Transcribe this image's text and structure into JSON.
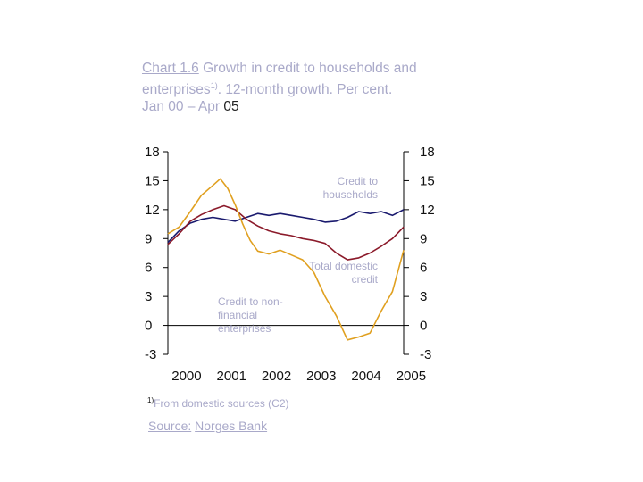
{
  "title": {
    "chart_no": "Chart 1.6",
    "text": "Growth in credit to households and enterprises",
    "sup": "1)",
    "text2": ". 12-month growth. Per cent.",
    "period_a": "Jan 00 – Apr",
    "period_b": "05"
  },
  "footnote": {
    "sup": "1)",
    "text": "From domestic sources (C2)"
  },
  "source": {
    "label": "Source:",
    "name": "Norges Bank"
  },
  "chart_data": {
    "type": "line",
    "x_ticks": [
      "2000",
      "2001",
      "2002",
      "2003",
      "2004",
      "2005"
    ],
    "y_ticks": [
      18,
      15,
      12,
      9,
      6,
      3,
      0,
      -3
    ],
    "ylim": [
      -3,
      18
    ],
    "xlim": [
      "2000-01",
      "2005-04"
    ],
    "annotations": [
      {
        "lines": [
          "Credit to",
          "households"
        ],
        "anchor": "end"
      },
      {
        "lines": [
          "Total domestic",
          "credit"
        ],
        "anchor": "end"
      },
      {
        "lines": [
          "Credit to non-",
          "financial",
          "enterprises"
        ],
        "anchor": "start"
      }
    ],
    "series": [
      {
        "color": "#1a1a6e",
        "x": [
          "2000-01",
          "2000-04",
          "2000-07",
          "2000-10",
          "2001-01",
          "2001-04",
          "2001-07",
          "2001-10",
          "2002-01",
          "2002-04",
          "2002-07",
          "2002-10",
          "2003-01",
          "2003-04",
          "2003-07",
          "2003-10",
          "2004-01",
          "2004-04",
          "2004-07",
          "2004-10",
          "2005-01",
          "2005-04"
        ],
        "values": [
          8.6,
          9.8,
          10.6,
          11.0,
          11.2,
          11.0,
          10.8,
          11.2,
          11.6,
          11.4,
          11.6,
          11.4,
          11.2,
          11.0,
          10.7,
          10.8,
          11.2,
          11.8,
          11.6,
          11.8,
          11.4,
          12.0
        ]
      },
      {
        "color": "#8b1a2a",
        "x": [
          "2000-01",
          "2000-04",
          "2000-07",
          "2000-10",
          "2001-01",
          "2001-04",
          "2001-07",
          "2001-10",
          "2002-01",
          "2002-04",
          "2002-07",
          "2002-10",
          "2003-01",
          "2003-04",
          "2003-07",
          "2003-10",
          "2004-01",
          "2004-04",
          "2004-07",
          "2004-10",
          "2005-01",
          "2005-04"
        ],
        "values": [
          8.4,
          9.5,
          10.8,
          11.5,
          12.0,
          12.4,
          12.0,
          11.0,
          10.3,
          9.8,
          9.5,
          9.3,
          9.0,
          8.8,
          8.5,
          7.5,
          6.8,
          7.0,
          7.5,
          8.2,
          9.0,
          10.2
        ]
      },
      {
        "color": "#e0a020",
        "x": [
          "2000-01",
          "2000-04",
          "2000-07",
          "2000-10",
          "2001-01",
          "2001-03",
          "2001-05",
          "2001-07",
          "2001-09",
          "2001-11",
          "2002-01",
          "2002-04",
          "2002-07",
          "2002-10",
          "2003-01",
          "2003-04",
          "2003-07",
          "2003-10",
          "2004-01",
          "2004-04",
          "2004-07",
          "2004-10",
          "2005-01",
          "2005-04"
        ],
        "values": [
          9.5,
          10.2,
          11.8,
          13.5,
          14.5,
          15.2,
          14.2,
          12.5,
          10.5,
          8.8,
          7.7,
          7.4,
          7.8,
          7.3,
          6.8,
          5.5,
          3.0,
          1.0,
          -1.5,
          -1.2,
          -0.8,
          1.5,
          3.5,
          7.8
        ]
      }
    ]
  }
}
